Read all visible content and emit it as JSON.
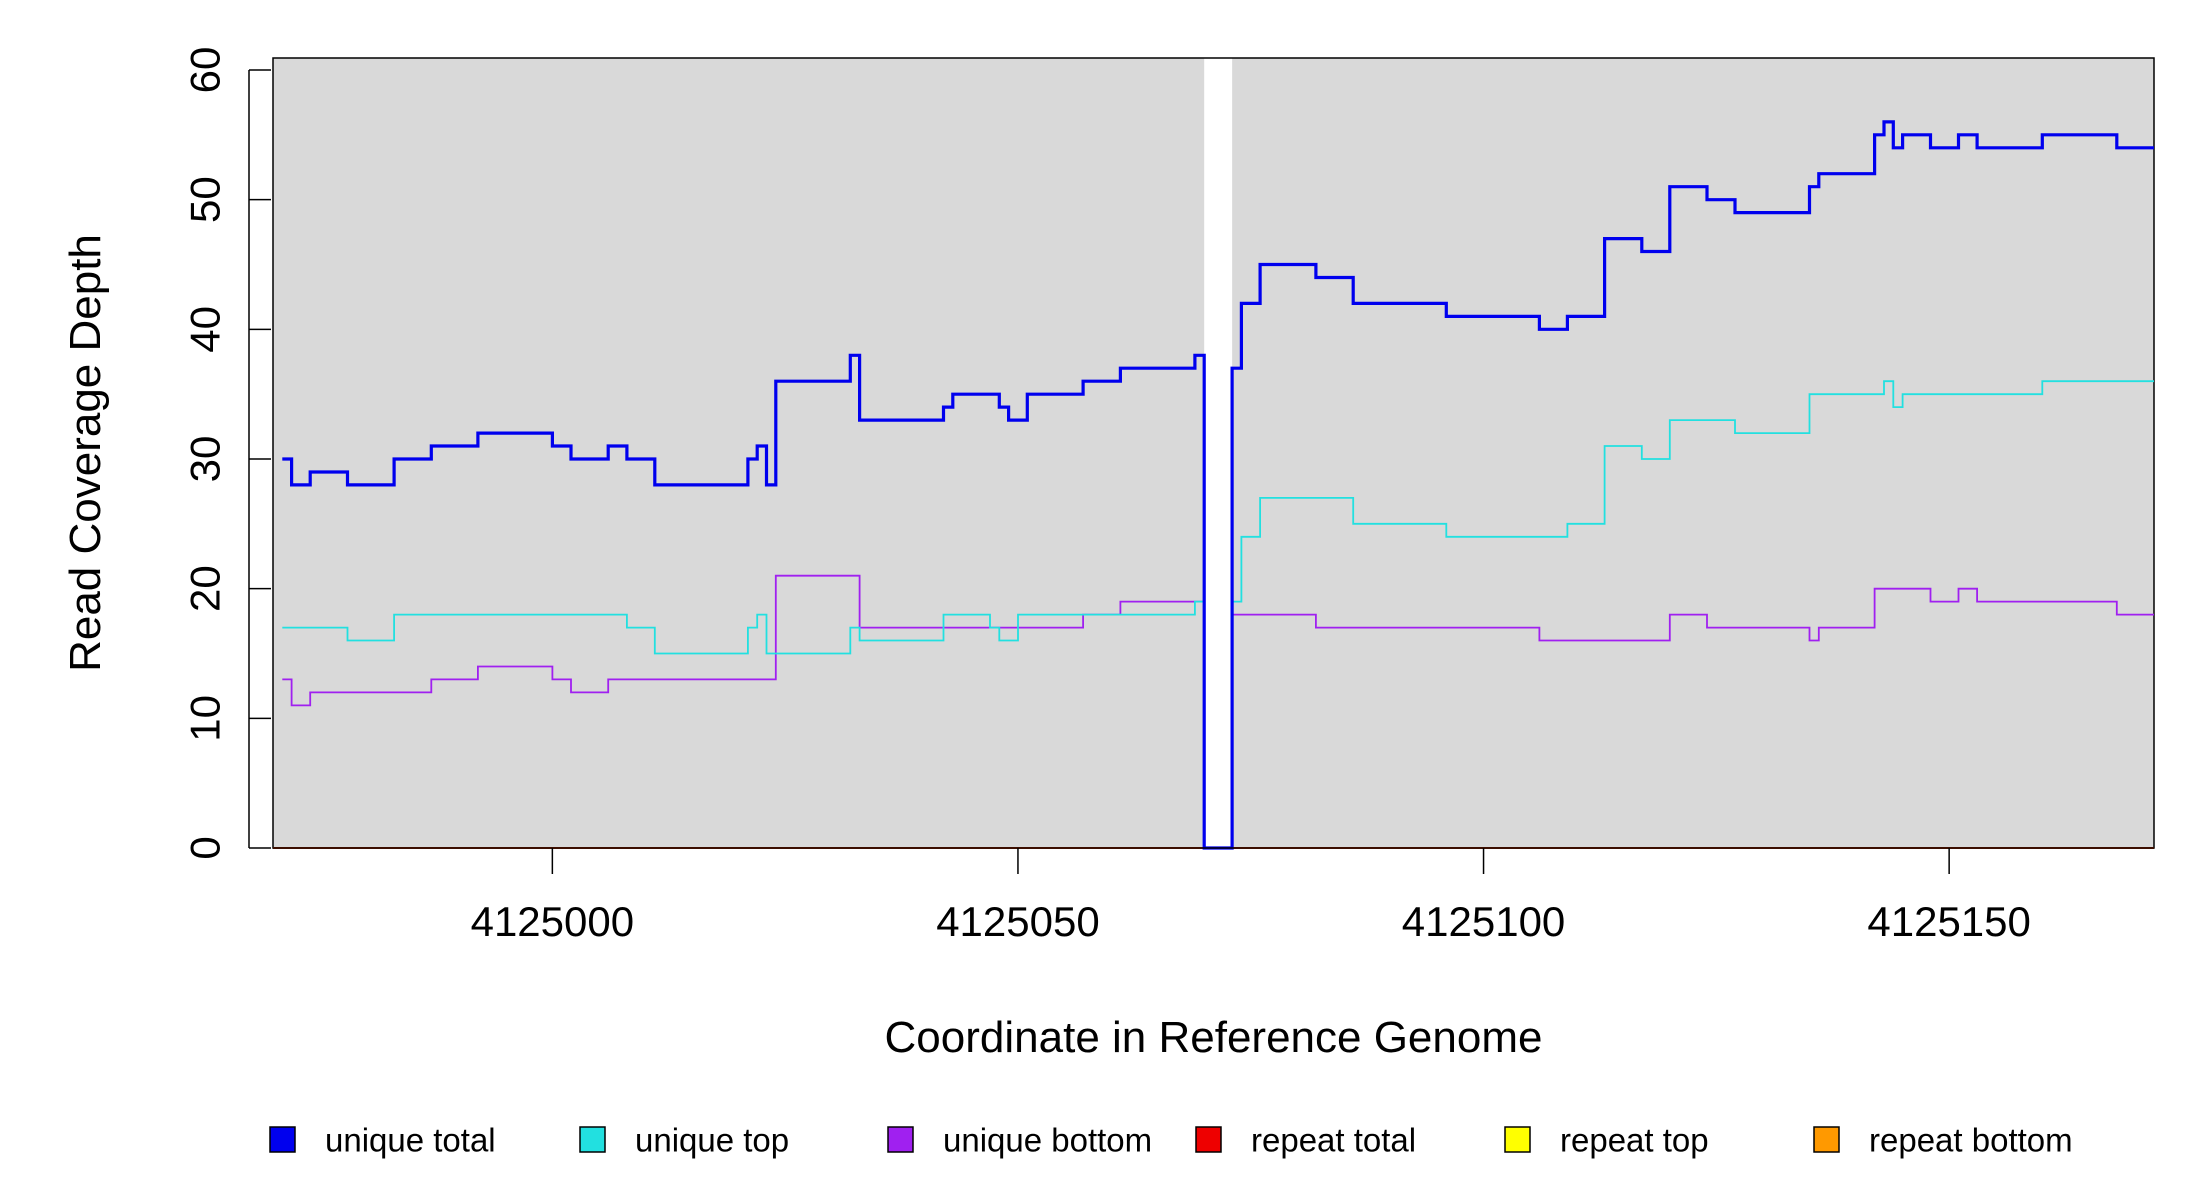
{
  "chart_data": {
    "type": "line",
    "xlabel": "Coordinate in Reference Genome",
    "ylabel": "Read Coverage Depth",
    "xlim": [
      4124970,
      4125172
    ],
    "ylim": [
      0,
      60
    ],
    "x_ticks": [
      4125000,
      4125050,
      4125100,
      4125150
    ],
    "y_ticks": [
      0,
      10,
      20,
      30,
      40,
      50,
      60
    ],
    "x_tick_labels": [
      "4125000",
      "4125050",
      "4125100",
      "4125150"
    ],
    "y_tick_labels": [
      "0",
      "10",
      "20",
      "30",
      "40",
      "50",
      "60"
    ],
    "plot_background": "#d9d9d9",
    "gap_region": {
      "from": 4125070,
      "to": 4125073,
      "color": "#ffffff"
    },
    "grid": false,
    "legend_position": "bottom",
    "series": [
      {
        "name": "unique total",
        "color": "#0000ee",
        "weight": "thick",
        "steps": [
          [
            4124971,
            30
          ],
          [
            4124972,
            28
          ],
          [
            4124974,
            29
          ],
          [
            4124978,
            28
          ],
          [
            4124983,
            30
          ],
          [
            4124987,
            31
          ],
          [
            4124992,
            32
          ],
          [
            4125000,
            31
          ],
          [
            4125002,
            30
          ],
          [
            4125006,
            31
          ],
          [
            4125008,
            30
          ],
          [
            4125011,
            28
          ],
          [
            4125021,
            30
          ],
          [
            4125022,
            31
          ],
          [
            4125023,
            28
          ],
          [
            4125024,
            36
          ],
          [
            4125032,
            38
          ],
          [
            4125033,
            33
          ],
          [
            4125042,
            34
          ],
          [
            4125043,
            35
          ],
          [
            4125048,
            34
          ],
          [
            4125049,
            33
          ],
          [
            4125051,
            35
          ],
          [
            4125057,
            36
          ],
          [
            4125061,
            37
          ],
          [
            4125069,
            38
          ],
          [
            4125070,
            0
          ],
          [
            4125073,
            37
          ],
          [
            4125074,
            42
          ],
          [
            4125076,
            45
          ],
          [
            4125082,
            44
          ],
          [
            4125086,
            42
          ],
          [
            4125096,
            41
          ],
          [
            4125106,
            40
          ],
          [
            4125109,
            41
          ],
          [
            4125113,
            47
          ],
          [
            4125117,
            46
          ],
          [
            4125120,
            51
          ],
          [
            4125124,
            50
          ],
          [
            4125127,
            49
          ],
          [
            4125135,
            51
          ],
          [
            4125136,
            52
          ],
          [
            4125142,
            55
          ],
          [
            4125143,
            56
          ],
          [
            4125144,
            54
          ],
          [
            4125145,
            55
          ],
          [
            4125148,
            54
          ],
          [
            4125151,
            55
          ],
          [
            4125153,
            54
          ],
          [
            4125160,
            55
          ],
          [
            4125168,
            54
          ],
          [
            4125172,
            54
          ]
        ]
      },
      {
        "name": "unique top",
        "color": "#22e0e0",
        "weight": "thin",
        "steps": [
          [
            4124971,
            17
          ],
          [
            4124978,
            16
          ],
          [
            4124983,
            18
          ],
          [
            4125008,
            17
          ],
          [
            4125011,
            15
          ],
          [
            4125021,
            17
          ],
          [
            4125022,
            18
          ],
          [
            4125023,
            15
          ],
          [
            4125032,
            17
          ],
          [
            4125033,
            16
          ],
          [
            4125042,
            18
          ],
          [
            4125047,
            17
          ],
          [
            4125048,
            16
          ],
          [
            4125050,
            18
          ],
          [
            4125057,
            18
          ],
          [
            4125069,
            19
          ],
          [
            4125070,
            0
          ],
          [
            4125073,
            19
          ],
          [
            4125074,
            24
          ],
          [
            4125076,
            27
          ],
          [
            4125086,
            25
          ],
          [
            4125096,
            24
          ],
          [
            4125109,
            25
          ],
          [
            4125113,
            31
          ],
          [
            4125117,
            30
          ],
          [
            4125120,
            33
          ],
          [
            4125127,
            32
          ],
          [
            4125135,
            35
          ],
          [
            4125143,
            36
          ],
          [
            4125144,
            34
          ],
          [
            4125145,
            35
          ],
          [
            4125160,
            36
          ],
          [
            4125172,
            36
          ]
        ]
      },
      {
        "name": "unique bottom",
        "color": "#a020f0",
        "weight": "thin",
        "steps": [
          [
            4124971,
            13
          ],
          [
            4124972,
            11
          ],
          [
            4124974,
            12
          ],
          [
            4124987,
            13
          ],
          [
            4124992,
            14
          ],
          [
            4125000,
            13
          ],
          [
            4125002,
            12
          ],
          [
            4125006,
            13
          ],
          [
            4125024,
            21
          ],
          [
            4125033,
            17
          ],
          [
            4125057,
            18
          ],
          [
            4125061,
            19
          ],
          [
            4125070,
            0
          ],
          [
            4125073,
            18
          ],
          [
            4125082,
            17
          ],
          [
            4125106,
            16
          ],
          [
            4125120,
            18
          ],
          [
            4125124,
            17
          ],
          [
            4125135,
            16
          ],
          [
            4125136,
            17
          ],
          [
            4125142,
            20
          ],
          [
            4125148,
            19
          ],
          [
            4125151,
            20
          ],
          [
            4125153,
            19
          ],
          [
            4125168,
            18
          ],
          [
            4125172,
            18
          ]
        ]
      },
      {
        "name": "repeat total",
        "color": "#ee0000",
        "weight": "thin",
        "steps": [
          [
            4124970,
            0
          ],
          [
            4125172,
            0
          ]
        ]
      },
      {
        "name": "repeat top",
        "color": "#ffff00",
        "weight": "thin",
        "steps": [
          [
            4124970,
            0
          ],
          [
            4125172,
            0
          ]
        ]
      },
      {
        "name": "repeat bottom",
        "color": "#ff9900",
        "weight": "thin",
        "steps": [
          [
            4124970,
            0
          ],
          [
            4125172,
            0
          ]
        ]
      }
    ]
  }
}
